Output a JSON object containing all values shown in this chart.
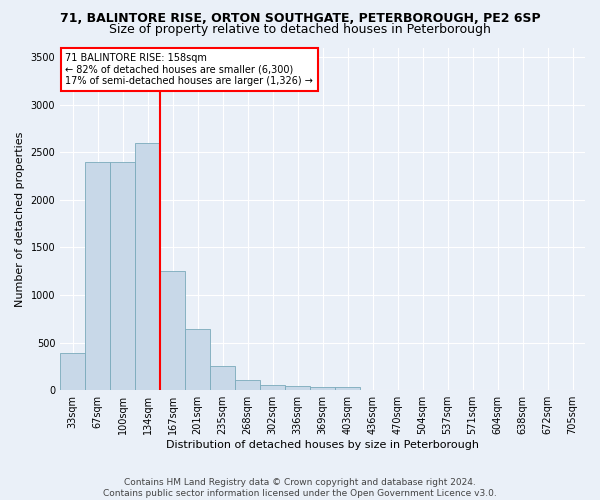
{
  "title1": "71, BALINTORE RISE, ORTON SOUTHGATE, PETERBOROUGH, PE2 6SP",
  "title2": "Size of property relative to detached houses in Peterborough",
  "xlabel": "Distribution of detached houses by size in Peterborough",
  "ylabel": "Number of detached properties",
  "footnote1": "Contains HM Land Registry data © Crown copyright and database right 2024.",
  "footnote2": "Contains public sector information licensed under the Open Government Licence v3.0.",
  "bar_labels": [
    "33sqm",
    "67sqm",
    "100sqm",
    "134sqm",
    "167sqm",
    "201sqm",
    "235sqm",
    "268sqm",
    "302sqm",
    "336sqm",
    "369sqm",
    "403sqm",
    "436sqm",
    "470sqm",
    "504sqm",
    "537sqm",
    "571sqm",
    "604sqm",
    "638sqm",
    "672sqm",
    "705sqm"
  ],
  "bar_values": [
    390,
    2400,
    2400,
    2600,
    1250,
    640,
    250,
    105,
    55,
    40,
    35,
    35,
    0,
    0,
    0,
    0,
    0,
    0,
    0,
    0,
    0
  ],
  "bar_color": "#c8d8e8",
  "bar_edge_color": "#7aaabb",
  "vline_position": 4.0,
  "property_line_label": "71 BALINTORE RISE: 158sqm",
  "annotation_line1": "← 82% of detached houses are smaller (6,300)",
  "annotation_line2": "17% of semi-detached houses are larger (1,326) →",
  "annotation_box_color": "white",
  "annotation_box_edge": "red",
  "vline_color": "red",
  "ylim": [
    0,
    3600
  ],
  "yticks": [
    0,
    500,
    1000,
    1500,
    2000,
    2500,
    3000,
    3500
  ],
  "background_color": "#eaf0f8",
  "grid_color": "white",
  "title1_fontsize": 9,
  "title2_fontsize": 9,
  "xlabel_fontsize": 8,
  "ylabel_fontsize": 8,
  "tick_fontsize": 7,
  "annotation_fontsize": 7,
  "footnote_fontsize": 6.5
}
